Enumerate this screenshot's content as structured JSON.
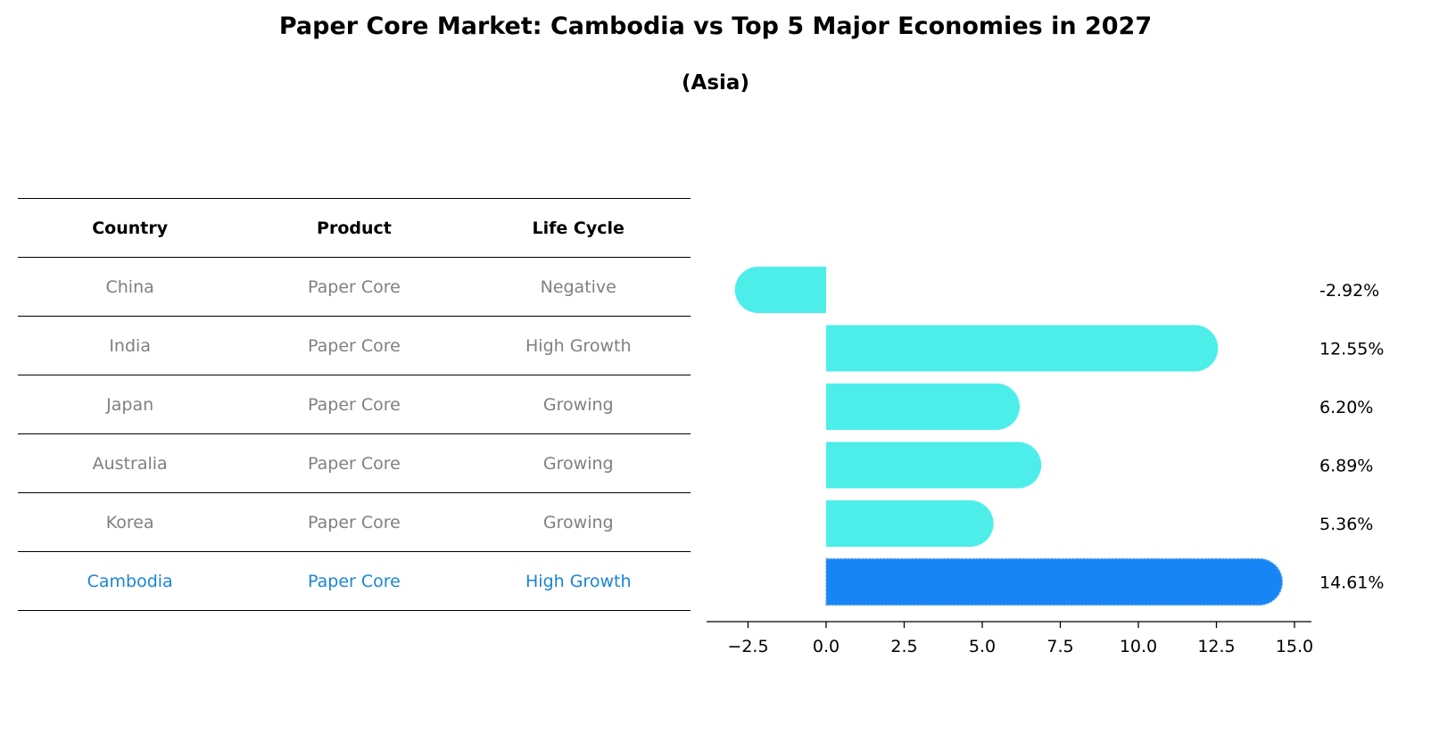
{
  "title": "Paper Core Market: Cambodia vs Top 5 Major Economies in 2027",
  "subtitle": "(Asia)",
  "table": {
    "headers": [
      "Country",
      "Product",
      "Life Cycle"
    ],
    "rows": [
      {
        "country": "China",
        "product": "Paper Core",
        "life_cycle": "Negative",
        "highlight": false
      },
      {
        "country": "India",
        "product": "Paper Core",
        "life_cycle": "High Growth",
        "highlight": false
      },
      {
        "country": "Japan",
        "product": "Paper Core",
        "life_cycle": "Growing",
        "highlight": false
      },
      {
        "country": "Australia",
        "product": "Paper Core",
        "life_cycle": "Growing",
        "highlight": false
      },
      {
        "country": "Korea",
        "product": "Paper Core",
        "life_cycle": "Growing",
        "highlight": false
      },
      {
        "country": "Cambodia",
        "product": "Paper Core",
        "life_cycle": "High Growth",
        "highlight": true
      }
    ]
  },
  "chart_data": {
    "type": "bar",
    "orientation": "horizontal",
    "categories": [
      "China",
      "India",
      "Japan",
      "Australia",
      "Korea",
      "Cambodia"
    ],
    "values": [
      -2.92,
      12.55,
      6.2,
      6.89,
      5.36,
      14.61
    ],
    "value_labels": [
      "-2.92%",
      "12.55%",
      "6.20%",
      "6.89%",
      "5.36%",
      "14.61%"
    ],
    "xlim": [
      -3.8,
      15.4
    ],
    "xticks": [
      -2.5,
      0.0,
      2.5,
      5.0,
      7.5,
      10.0,
      12.5,
      15.0
    ],
    "xtick_labels": [
      "−2.5",
      "0.0",
      "2.5",
      "5.0",
      "7.5",
      "10.0",
      "12.5",
      "15.0"
    ],
    "colors": {
      "default": "#4deeea",
      "highlight": "#1785f5",
      "highlight_index": 5
    },
    "grid": false,
    "legend": "none"
  }
}
